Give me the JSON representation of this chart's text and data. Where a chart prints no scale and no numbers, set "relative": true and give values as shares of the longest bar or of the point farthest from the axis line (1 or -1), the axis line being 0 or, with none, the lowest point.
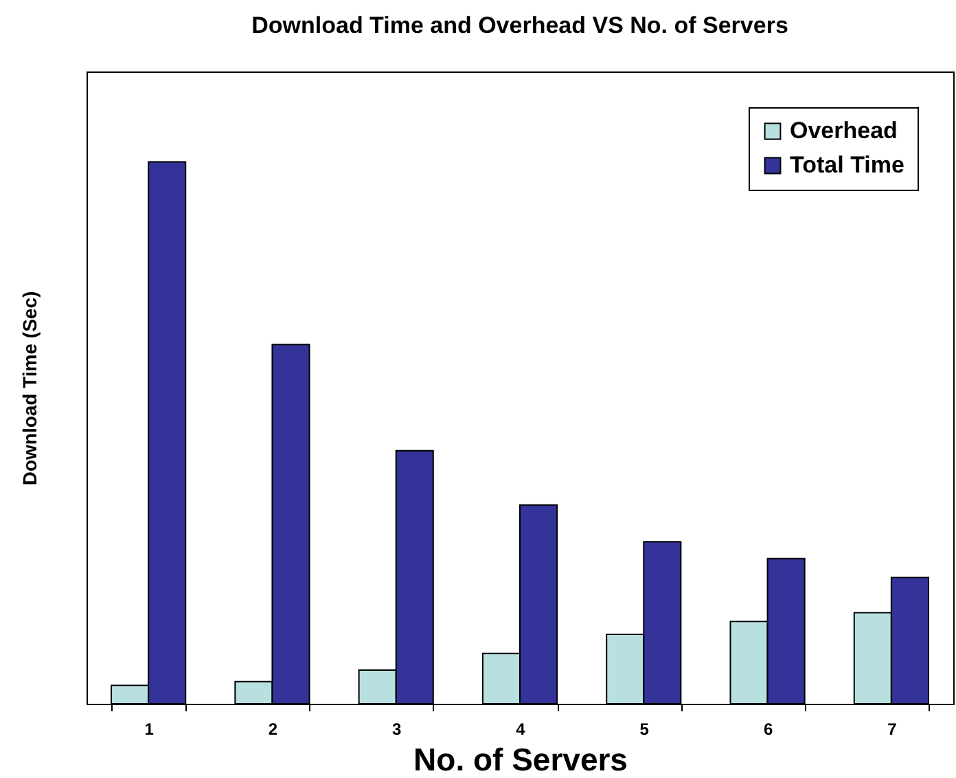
{
  "chart_data": {
    "type": "bar",
    "title": "Download Time and Overhead VS No. of Servers",
    "xlabel": "No. of Servers",
    "ylabel": "Download Time (Sec)",
    "categories": [
      "1",
      "2",
      "3",
      "4",
      "5",
      "6",
      "7"
    ],
    "relative": true,
    "series": [
      {
        "name": "Overhead",
        "color": "#b8e0e0",
        "values": [
          0.034,
          0.041,
          0.062,
          0.093,
          0.128,
          0.152,
          0.168
        ]
      },
      {
        "name": "Total Time",
        "color": "#333399",
        "values": [
          1,
          0.663,
          0.467,
          0.367,
          0.299,
          0.268,
          0.233
        ]
      }
    ],
    "legend": "top right",
    "grid": false
  }
}
